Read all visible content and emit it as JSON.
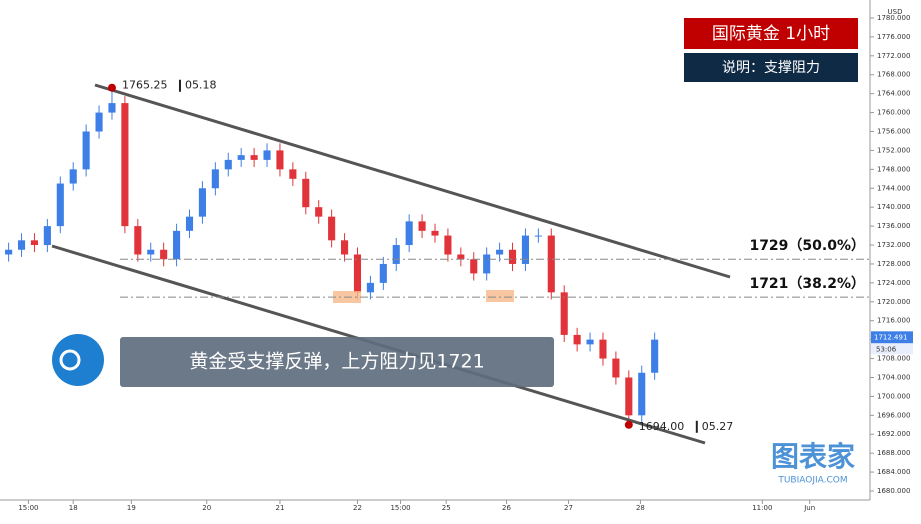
{
  "chart_data": {
    "type": "candlestick",
    "title": "国际黄金  1小时",
    "subtitle": "说明：支撑阻力",
    "annotation": "黄金受支撑反弹，上方阻力见1721",
    "currency": "USD",
    "up_color": "#3d7fe6",
    "down_color": "#e0343a",
    "x": [
      0,
      3,
      6,
      9,
      12,
      15,
      18,
      21,
      24,
      27,
      30,
      33,
      36,
      39,
      42,
      45,
      48,
      51,
      54,
      57,
      60,
      63,
      66,
      69,
      72,
      75,
      78,
      81,
      84,
      87,
      90,
      93,
      96,
      99,
      102,
      105,
      108,
      111,
      114,
      117,
      120,
      123,
      126,
      129,
      132,
      135,
      138,
      141,
      144,
      147,
      150
    ],
    "open": [
      1730,
      1731,
      1733,
      1732,
      1736,
      1745,
      1748,
      1756,
      1760,
      1762,
      1736,
      1730,
      1731,
      1729,
      1735,
      1738,
      1744,
      1748,
      1750,
      1751,
      1750,
      1752,
      1748,
      1746,
      1740,
      1738,
      1733,
      1730,
      1722,
      1724,
      1728,
      1732,
      1737,
      1735,
      1734,
      1730,
      1729,
      1726,
      1730,
      1731,
      1728,
      1734,
      1734,
      1722,
      1713,
      1711,
      1712,
      1708,
      1704,
      1696,
      1705
    ],
    "high": [
      1732.5,
      1734.5,
      1734.5,
      1737.5,
      1746.5,
      1749.5,
      1757.5,
      1761.5,
      1765.25,
      1763.5,
      1737.5,
      1732.5,
      1732.5,
      1736.5,
      1739.5,
      1745.5,
      1749.5,
      1751.5,
      1752.5,
      1752.5,
      1753.5,
      1753.5,
      1749.5,
      1747.5,
      1741.5,
      1739.5,
      1734.5,
      1731.5,
      1725.5,
      1729.5,
      1733.5,
      1738.5,
      1738.5,
      1736.5,
      1735.5,
      1731.5,
      1730.5,
      1731.5,
      1732.5,
      1732.5,
      1735.5,
      1735.5,
      1735.5,
      1723.5,
      1714.5,
      1713.5,
      1713.5,
      1709.5,
      1705.5,
      1706.5,
      1713.5
    ],
    "low": [
      1728.5,
      1729.5,
      1730.5,
      1730.5,
      1734.5,
      1743.5,
      1746.5,
      1754.5,
      1758.5,
      1734.5,
      1728.5,
      1728.5,
      1727.5,
      1727.5,
      1733.5,
      1736.5,
      1742.5,
      1746.5,
      1748.5,
      1748.5,
      1748.5,
      1746.5,
      1744.5,
      1738.5,
      1736.5,
      1731.5,
      1728.5,
      1720.5,
      1720.5,
      1722.5,
      1726.5,
      1730.5,
      1733.5,
      1732.5,
      1728.5,
      1727.5,
      1724.5,
      1724.5,
      1728.5,
      1726.5,
      1726.5,
      1732.5,
      1720.5,
      1711.5,
      1709.5,
      1709.5,
      1706.5,
      1702.5,
      1694.0,
      1694.5,
      1703.5
    ],
    "close": [
      1731,
      1733,
      1732,
      1736,
      1745,
      1748,
      1756,
      1760,
      1762,
      1736,
      1730,
      1731,
      1729,
      1735,
      1738,
      1744,
      1748,
      1750,
      1751,
      1750,
      1752,
      1748,
      1746,
      1740,
      1738,
      1733,
      1730,
      1722,
      1724,
      1728,
      1732,
      1737,
      1735,
      1734,
      1730,
      1729,
      1726,
      1730,
      1731,
      1728,
      1734,
      1734,
      1722,
      1713,
      1711,
      1712,
      1708,
      1704,
      1696,
      1705,
      1712
    ],
    "xlim": [
      -2,
      200
    ],
    "xticks": [
      {
        "value": 4.6,
        "label": "15:00"
      },
      {
        "value": 15,
        "label": "18"
      },
      {
        "value": 28.5,
        "label": "19"
      },
      {
        "value": 46,
        "label": "20"
      },
      {
        "value": 63,
        "label": "21"
      },
      {
        "value": 81,
        "label": "22"
      },
      {
        "value": 91,
        "label": "15:00"
      },
      {
        "value": 101.6,
        "label": "25"
      },
      {
        "value": 115.6,
        "label": "26"
      },
      {
        "value": 130,
        "label": "27"
      },
      {
        "value": 146.7,
        "label": "28"
      },
      {
        "value": 175,
        "label": "11:00"
      },
      {
        "value": 186,
        "label": "Jun"
      }
    ],
    "ylim": [
      1678.1,
      1783.8
    ],
    "yticks": [
      {
        "value": 1680,
        "label": "1680.000"
      },
      {
        "value": 1684,
        "label": "1684.000"
      },
      {
        "value": 1688,
        "label": "1688.000"
      },
      {
        "value": 1692,
        "label": "1692.000"
      },
      {
        "value": 1696,
        "label": "1696.000"
      },
      {
        "value": 1700,
        "label": "1700.000"
      },
      {
        "value": 1704,
        "label": "1704.000"
      },
      {
        "value": 1708,
        "label": "1708.000"
      },
      {
        "value": 1712,
        "label": "1712.000"
      },
      {
        "value": 1716,
        "label": "1716.000"
      },
      {
        "value": 1720,
        "label": "1720.000"
      },
      {
        "value": 1724,
        "label": "1724.000"
      },
      {
        "value": 1728,
        "label": "1728.000"
      },
      {
        "value": 1732,
        "label": "1732.000"
      },
      {
        "value": 1736,
        "label": "1736.000"
      },
      {
        "value": 1740,
        "label": "1740.000"
      },
      {
        "value": 1744,
        "label": "1744.000"
      },
      {
        "value": 1748,
        "label": "1748.000"
      },
      {
        "value": 1752,
        "label": "1752.000"
      },
      {
        "value": 1756,
        "label": "1756.000"
      },
      {
        "value": 1760,
        "label": "1760.000"
      },
      {
        "value": 1764,
        "label": "1764.000"
      },
      {
        "value": 1768,
        "label": "1768.000"
      },
      {
        "value": 1772,
        "label": "1772.000"
      },
      {
        "value": 1776,
        "label": "1776.000"
      },
      {
        "value": 1780,
        "label": "1780.000"
      }
    ],
    "levels": [
      {
        "value": 1729,
        "label": "1729（50.0%）"
      },
      {
        "value": 1721,
        "label": "1721（38.2%）"
      }
    ],
    "high_point": {
      "value": 1765.25,
      "label": "1765.25",
      "date": "05.18"
    },
    "low_point": {
      "value": 1694,
      "label": "1694.00",
      "date": "05.27"
    },
    "last_price": {
      "value": 1712.491,
      "label": "1712.491"
    },
    "countdown": "53:06",
    "watermark": [
      "图表家",
      "TUBIAOJIA.COM"
    ]
  }
}
